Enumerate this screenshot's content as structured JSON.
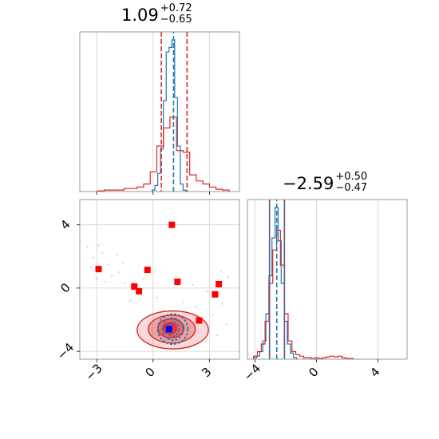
{
  "chart_data": {
    "type": "scatter",
    "panels": [
      {
        "kind": "histogram",
        "parameter_index": 0,
        "title": {
          "value": "1.09",
          "upper": "+0.72",
          "lower": "−0.65"
        },
        "xlim": [
          -3.9,
          4.6
        ],
        "xticks": [
          -3,
          0,
          3
        ],
        "quantile_lines_red": [
          0.44,
          1.81
        ],
        "quantile_lines_blue": [
          1.09
        ],
        "series": [
          {
            "color": "#1f77b4",
            "bin_edges": [
              -0.05,
              0.1,
              0.25,
              0.4,
              0.55,
              0.7,
              0.85,
              1.0,
              1.15,
              1.3,
              1.45,
              1.6,
              1.75
            ],
            "counts": [
              0.01,
              0.04,
              0.12,
              0.28,
              0.6,
              0.92,
              0.95,
              1.0,
              0.62,
              0.3,
              0.05,
              0.01
            ]
          },
          {
            "color": "#d62728",
            "bin_edges": [
              -2.95,
              -2.6,
              -2.25,
              -1.9,
              -1.55,
              -1.2,
              -0.85,
              -0.5,
              -0.15,
              0.2,
              0.55,
              0.9,
              1.25,
              1.6,
              1.95,
              2.3,
              2.65,
              3.0,
              3.35,
              3.7,
              4.05
            ],
            "counts": [
              0.005,
              0.01,
              0.01,
              0.01,
              0.02,
              0.02,
              0.03,
              0.05,
              0.13,
              0.3,
              0.42,
              0.49,
              0.27,
              0.26,
              0.11,
              0.07,
              0.05,
              0.03,
              0.015,
              0.01
            ]
          }
        ]
      },
      {
        "kind": "histogram",
        "parameter_index": 1,
        "title": {
          "value": "−2.59",
          "upper": "+0.50",
          "lower": "−0.47"
        },
        "xlim": [
          -4.5,
          5.9
        ],
        "xticks": [
          -4,
          0,
          4
        ],
        "quantile_lines_red": [
          -3.06,
          -2.09
        ],
        "quantile_lines_blue": [
          -3.06,
          -2.59,
          -2.09
        ],
        "series": [
          {
            "color": "#1f77b4",
            "bin_edges": [
              -4.1,
              -3.9,
              -3.7,
              -3.5,
              -3.3,
              -3.1,
              -2.9,
              -2.7,
              -2.5,
              -2.3,
              -2.1,
              -1.9,
              -1.7,
              -1.5,
              -1.3
            ],
            "counts": [
              0.01,
              0.02,
              0.05,
              0.12,
              0.3,
              0.55,
              0.8,
              1.0,
              0.78,
              0.5,
              0.25,
              0.1,
              0.04,
              0.01
            ]
          },
          {
            "color": "#d62728",
            "bin_edges": [
              -4.1,
              -3.85,
              -3.6,
              -3.35,
              -3.1,
              -2.85,
              -2.6,
              -2.35,
              -2.1,
              -1.85,
              -1.6,
              -1.35,
              -1.1,
              -0.85,
              -0.6,
              -0.35,
              -0.1,
              0.15,
              0.4,
              0.65,
              0.9,
              1.15,
              1.4,
              1.65,
              1.9,
              2.15,
              2.4
            ],
            "counts": [
              0.02,
              0.05,
              0.1,
              0.25,
              0.5,
              0.72,
              0.85,
              0.62,
              0.3,
              0.12,
              0.05,
              0.03,
              0.02,
              0.01,
              0.01,
              0.005,
              0.01,
              0.005,
              0.01,
              0.015,
              0.02,
              0.015,
              0.02,
              0.01,
              0.005,
              0.005
            ]
          }
        ]
      },
      {
        "kind": "2d",
        "xlim": [
          -3.9,
          4.6
        ],
        "ylim": [
          -4.5,
          5.6
        ],
        "xticks": [
          -3,
          0,
          3
        ],
        "yticks": [
          -4,
          0,
          4
        ],
        "red_contours": [
          {
            "cx": 1.05,
            "cy": -2.65,
            "rx": 1.9,
            "ry": 1.2,
            "fill_opacity": 0.18
          },
          {
            "cx": 1.0,
            "cy": -2.6,
            "rx": 1.25,
            "ry": 0.88,
            "fill_opacity": 0.3
          },
          {
            "cx": 0.95,
            "cy": -2.55,
            "rx": 0.7,
            "ry": 0.6,
            "fill_opacity": 0.45
          },
          {
            "cx": 0.9,
            "cy": -2.55,
            "rx": 0.35,
            "ry": 0.35,
            "fill_opacity": 0.65
          }
        ],
        "blue_contours": [
          {
            "cx": 1.05,
            "cy": -2.6,
            "rx": 0.8,
            "ry": 0.95
          },
          {
            "cx": 1.05,
            "cy": -2.6,
            "rx": 0.55,
            "ry": 0.7
          },
          {
            "cx": 1.05,
            "cy": -2.6,
            "rx": 0.32,
            "ry": 0.45
          }
        ],
        "red_squares": [
          {
            "x": 1.0,
            "y": 4.0
          },
          {
            "x": -2.9,
            "y": 1.2
          },
          {
            "x": -0.3,
            "y": 1.15
          },
          {
            "x": 1.3,
            "y": 0.4
          },
          {
            "x": -1.0,
            "y": 0.1
          },
          {
            "x": -0.75,
            "y": -0.2
          },
          {
            "x": 3.5,
            "y": 0.25
          },
          {
            "x": 3.3,
            "y": -0.4
          },
          {
            "x": 2.45,
            "y": -2.05
          }
        ],
        "blue_square": {
          "x": 0.85,
          "y": -2.6
        },
        "background_points": [
          {
            "x": -3.5,
            "y": 2.6
          },
          {
            "x": -3.2,
            "y": 1.9
          },
          {
            "x": -2.7,
            "y": 2.2
          },
          {
            "x": -2.4,
            "y": 1.5
          },
          {
            "x": -3.0,
            "y": 0.6
          },
          {
            "x": -2.2,
            "y": 0.8
          },
          {
            "x": -1.8,
            "y": 1.0
          },
          {
            "x": -1.5,
            "y": 0.3
          },
          {
            "x": -3.3,
            "y": 1.3
          },
          {
            "x": -2.6,
            "y": 0.4
          },
          {
            "x": -1.9,
            "y": 2.1
          },
          {
            "x": -0.5,
            "y": 0.6
          },
          {
            "x": 0.2,
            "y": -0.6
          },
          {
            "x": 1.6,
            "y": -0.9
          },
          {
            "x": 2.3,
            "y": -1.2
          },
          {
            "x": 2.9,
            "y": -0.2
          },
          {
            "x": 3.7,
            "y": -1.0
          },
          {
            "x": 3.9,
            "y": -2.3
          },
          {
            "x": 3.4,
            "y": -3.0
          },
          {
            "x": 2.8,
            "y": -3.4
          },
          {
            "x": 3.6,
            "y": 1.1
          },
          {
            "x": 4.0,
            "y": 0.7
          },
          {
            "x": -1.2,
            "y": -0.8
          },
          {
            "x": 0.6,
            "y": -1.4
          },
          {
            "x": -0.4,
            "y": -1.9
          },
          {
            "x": 2.1,
            "y": 0.2
          },
          {
            "x": 3.2,
            "y": -1.7
          },
          {
            "x": -2.9,
            "y": 2.7
          },
          {
            "x": -1.6,
            "y": 1.6
          },
          {
            "x": 1.9,
            "y": -3.8
          }
        ]
      }
    ]
  }
}
